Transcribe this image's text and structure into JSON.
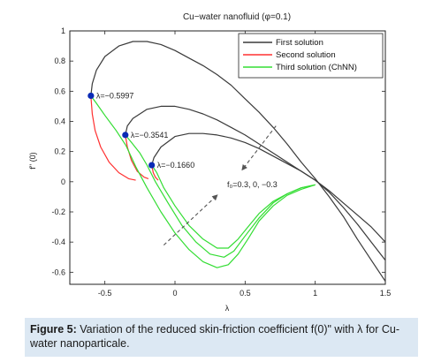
{
  "chart_data": {
    "type": "line",
    "title": "Cu−water nanofluid  (φ=0.1)",
    "xlabel": "λ",
    "ylabel": "f\" (0)",
    "xlim": [
      -0.75,
      1.5
    ],
    "ylim": [
      -0.68,
      1.0
    ],
    "xticks": [
      "-0.5",
      "0",
      "0.5",
      "1",
      "1.5"
    ],
    "xtick_values": [
      -0.5,
      0,
      0.5,
      1,
      1.5
    ],
    "yticks": [
      "1",
      "0.8",
      "0.6",
      "0.4",
      "0.2",
      "0",
      "-0.2",
      "-0.4",
      "-0.6"
    ],
    "ytick_values": [
      1,
      0.8,
      0.6,
      0.4,
      0.2,
      0,
      -0.2,
      -0.4,
      -0.6
    ],
    "grid": false,
    "legend_position": "top-right",
    "legend": [
      "First solution",
      "Second  solution",
      "Third solution (ChNN)"
    ],
    "colors": {
      "first": "#3a3a3a",
      "second": "#ff3030",
      "third": "#33dd33",
      "marker": "#0a2ab5",
      "annotation": "#555555"
    },
    "series": [
      {
        "name": "First solution",
        "color": "#3a3a3a",
        "points": [
          [
            -0.5997,
            0.57
          ],
          [
            -0.59,
            0.65
          ],
          [
            -0.56,
            0.74
          ],
          [
            -0.5,
            0.83
          ],
          [
            -0.4,
            0.9
          ],
          [
            -0.3,
            0.93
          ],
          [
            -0.2,
            0.93
          ],
          [
            -0.1,
            0.91
          ],
          [
            0,
            0.87
          ],
          [
            0.1,
            0.82
          ],
          [
            0.2,
            0.77
          ],
          [
            0.3,
            0.71
          ],
          [
            0.4,
            0.64
          ],
          [
            0.5,
            0.55
          ],
          [
            0.6,
            0.46
          ],
          [
            0.7,
            0.36
          ],
          [
            0.8,
            0.25
          ],
          [
            0.9,
            0.13
          ],
          [
            1.0,
            0.02
          ],
          [
            1.1,
            -0.1
          ],
          [
            1.2,
            -0.23
          ],
          [
            1.3,
            -0.38
          ],
          [
            1.4,
            -0.52
          ],
          [
            1.5,
            -0.66
          ]
        ]
      },
      {
        "name": "First solution",
        "color": "#3a3a3a",
        "points": [
          [
            -0.3541,
            0.31
          ],
          [
            -0.34,
            0.37
          ],
          [
            -0.3,
            0.42
          ],
          [
            -0.2,
            0.48
          ],
          [
            -0.1,
            0.5
          ],
          [
            0,
            0.5
          ],
          [
            0.1,
            0.48
          ],
          [
            0.2,
            0.45
          ],
          [
            0.3,
            0.41
          ],
          [
            0.4,
            0.36
          ],
          [
            0.5,
            0.31
          ],
          [
            0.6,
            0.25
          ],
          [
            0.7,
            0.19
          ],
          [
            0.8,
            0.13
          ],
          [
            0.9,
            0.07
          ],
          [
            1.0,
            0.01
          ],
          [
            1.1,
            -0.07
          ],
          [
            1.2,
            -0.17
          ],
          [
            1.3,
            -0.28
          ],
          [
            1.4,
            -0.4
          ],
          [
            1.5,
            -0.52
          ]
        ]
      },
      {
        "name": "First solution",
        "color": "#3a3a3a",
        "points": [
          [
            -0.166,
            0.11
          ],
          [
            -0.15,
            0.16
          ],
          [
            -0.1,
            0.23
          ],
          [
            0,
            0.3
          ],
          [
            0.1,
            0.32
          ],
          [
            0.2,
            0.32
          ],
          [
            0.3,
            0.31
          ],
          [
            0.4,
            0.29
          ],
          [
            0.5,
            0.26
          ],
          [
            0.6,
            0.22
          ],
          [
            0.7,
            0.17
          ],
          [
            0.8,
            0.12
          ],
          [
            0.9,
            0.07
          ],
          [
            1.0,
            0.01
          ],
          [
            1.1,
            -0.06
          ],
          [
            1.2,
            -0.14
          ],
          [
            1.3,
            -0.22
          ],
          [
            1.4,
            -0.3
          ],
          [
            1.5,
            -0.4
          ]
        ]
      },
      {
        "name": "Second  solution",
        "color": "#ff3030",
        "points": [
          [
            -0.5997,
            0.57
          ],
          [
            -0.59,
            0.45
          ],
          [
            -0.57,
            0.34
          ],
          [
            -0.53,
            0.23
          ],
          [
            -0.47,
            0.13
          ],
          [
            -0.4,
            0.06
          ],
          [
            -0.33,
            0.02
          ],
          [
            -0.28,
            0.01
          ]
        ]
      },
      {
        "name": "Second  solution",
        "color": "#ff3030",
        "points": [
          [
            -0.3541,
            0.31
          ],
          [
            -0.34,
            0.23
          ],
          [
            -0.31,
            0.14
          ],
          [
            -0.27,
            0.07
          ],
          [
            -0.22,
            0.03
          ],
          [
            -0.19,
            0.02
          ]
        ]
      },
      {
        "name": "Second  solution",
        "color": "#ff3030",
        "points": [
          [
            -0.166,
            0.11
          ],
          [
            -0.155,
            0.06
          ],
          [
            -0.14,
            0.03
          ],
          [
            -0.12,
            0.01
          ]
        ]
      },
      {
        "name": "Third solution (ChNN)",
        "color": "#33dd33",
        "points": [
          [
            -0.5997,
            0.57
          ],
          [
            -0.56,
            0.52
          ],
          [
            -0.5,
            0.44
          ],
          [
            -0.42,
            0.34
          ],
          [
            -0.35,
            0.24
          ],
          [
            -0.28,
            0.1
          ],
          [
            -0.2,
            -0.04
          ],
          [
            -0.1,
            -0.2
          ],
          [
            0,
            -0.34
          ],
          [
            0.1,
            -0.45
          ],
          [
            0.2,
            -0.53
          ],
          [
            0.3,
            -0.57
          ],
          [
            0.38,
            -0.55
          ],
          [
            0.45,
            -0.48
          ],
          [
            0.52,
            -0.38
          ],
          [
            0.6,
            -0.26
          ],
          [
            0.7,
            -0.16
          ],
          [
            0.8,
            -0.09
          ],
          [
            0.9,
            -0.05
          ],
          [
            1.0,
            -0.02
          ]
        ]
      },
      {
        "name": "Third solution (ChNN)",
        "color": "#33dd33",
        "points": [
          [
            -0.3541,
            0.31
          ],
          [
            -0.31,
            0.26
          ],
          [
            -0.25,
            0.19
          ],
          [
            -0.2,
            0.11
          ],
          [
            -0.14,
            0.0
          ],
          [
            -0.05,
            -0.14
          ],
          [
            0.05,
            -0.29
          ],
          [
            0.15,
            -0.4
          ],
          [
            0.25,
            -0.48
          ],
          [
            0.35,
            -0.5
          ],
          [
            0.42,
            -0.46
          ],
          [
            0.5,
            -0.36
          ],
          [
            0.6,
            -0.24
          ],
          [
            0.7,
            -0.14
          ],
          [
            0.8,
            -0.08
          ],
          [
            0.9,
            -0.04
          ],
          [
            1.0,
            -0.02
          ]
        ]
      },
      {
        "name": "Third solution (ChNN)",
        "color": "#33dd33",
        "points": [
          [
            -0.166,
            0.11
          ],
          [
            -0.13,
            0.06
          ],
          [
            -0.08,
            -0.04
          ],
          [
            0,
            -0.16
          ],
          [
            0.1,
            -0.29
          ],
          [
            0.2,
            -0.38
          ],
          [
            0.3,
            -0.44
          ],
          [
            0.38,
            -0.44
          ],
          [
            0.45,
            -0.38
          ],
          [
            0.52,
            -0.3
          ],
          [
            0.6,
            -0.21
          ],
          [
            0.7,
            -0.13
          ],
          [
            0.8,
            -0.08
          ],
          [
            0.9,
            -0.04
          ],
          [
            1.0,
            -0.02
          ]
        ]
      }
    ],
    "markers": [
      {
        "x": -0.5997,
        "y": 0.57,
        "label": "λ=−0.5997"
      },
      {
        "x": -0.3541,
        "y": 0.31,
        "label": "λ=−0.3541"
      },
      {
        "x": -0.166,
        "y": 0.11,
        "label": "λ=−0.1660"
      }
    ],
    "annotation": {
      "text": "f₀=0.3,  0, −0.3"
    },
    "arrows": [
      {
        "from": [
          0.72,
          0.37
        ],
        "to": [
          0.48,
          0.08
        ]
      },
      {
        "from": [
          -0.08,
          -0.42
        ],
        "to": [
          0.3,
          -0.09
        ]
      }
    ]
  },
  "caption": {
    "label": "Figure 5:",
    "text": " Variation of the reduced skin-friction coefficient f(0)\" with λ for Cu-water nanoparticale."
  }
}
